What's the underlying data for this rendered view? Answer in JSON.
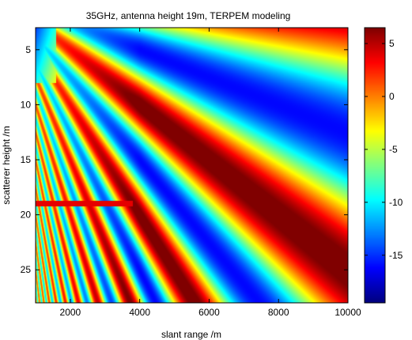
{
  "chart_data": {
    "type": "heatmap",
    "title": "35GHz,  antenna height 19m,  TERPEM modeling",
    "xlabel": "slant range /m",
    "ylabel": "scatterer height /m",
    "xlim": [
      1000,
      10000
    ],
    "ylim": [
      28,
      3
    ],
    "y_axis_direction": "reversed (increasing downward)",
    "x_ticks": [
      2000,
      4000,
      6000,
      8000,
      10000
    ],
    "y_ticks": [
      5,
      10,
      15,
      20,
      25
    ],
    "colorbar": {
      "range": [
        -19.5,
        6.5
      ],
      "ticks": [
        5,
        0,
        -5,
        -10,
        -15
      ],
      "colormap": "jet"
    },
    "antenna_height": 19,
    "description_of_field": "two-ray interference fringes fanning out from the antenna height; fringe spacing widens with slant range; dark-red maxima near +5, dark-blue minima near -19",
    "grid": false
  }
}
